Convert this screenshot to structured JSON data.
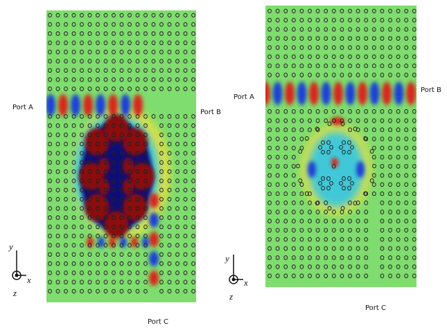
{
  "panels": [
    {
      "port_a": "Port A",
      "port_b": "Port B",
      "port_c": "Port C",
      "axis_y": "y",
      "axis_x": "x",
      "axis_z": "z"
    },
    {
      "port_a": "Port A",
      "port_b": "Port B",
      "port_c": "Port C",
      "axis_y": "y",
      "axis_x": "x",
      "axis_z": "z"
    }
  ]
}
